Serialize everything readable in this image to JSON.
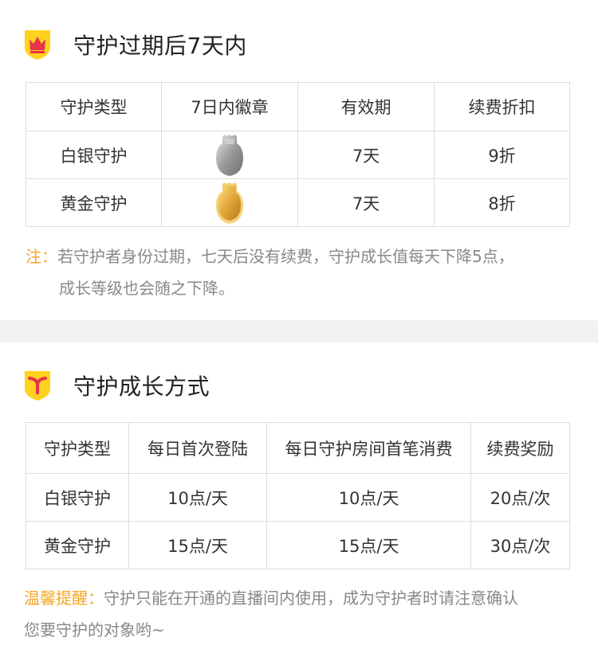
{
  "section1": {
    "title": "守护过期后7天内",
    "icon": "crown-shield-icon",
    "headers": [
      "守护类型",
      "7日内徽章",
      "有效期",
      "续费折扣"
    ],
    "rows": [
      {
        "type": "白银守护",
        "badge": "silver-badge-icon",
        "validity": "7天",
        "discount": "9折"
      },
      {
        "type": "黄金守护",
        "badge": "gold-badge-icon",
        "validity": "7天",
        "discount": "8折"
      }
    ],
    "note_label": "注：",
    "note_line1": "若守护者身份过期，七天后没有续费，守护成长值每天下降5点，",
    "note_line2": "成长等级也会随之下降。"
  },
  "section2": {
    "title": "守护成长方式",
    "icon": "y-shield-icon",
    "headers": [
      "守护类型",
      "每日首次登陆",
      "每日守护房间首笔消费",
      "续费奖励"
    ],
    "rows": [
      {
        "type": "白银守护",
        "login": "10点/天",
        "spend": "10点/天",
        "renew": "20点/次"
      },
      {
        "type": "黄金守护",
        "login": "15点/天",
        "spend": "15点/天",
        "renew": "30点/次"
      }
    ],
    "tip_label": "温馨提醒：",
    "tip_text": "守护只能在开通的直播间内使用，成为守护者时请注意确认",
    "tip_text2": "您要守护的对象哟~"
  },
  "colors": {
    "accent_yellow": "#ffd21f",
    "icon_red": "#e8334a",
    "note_orange": "#f5a623",
    "border": "#dcdcdc"
  }
}
